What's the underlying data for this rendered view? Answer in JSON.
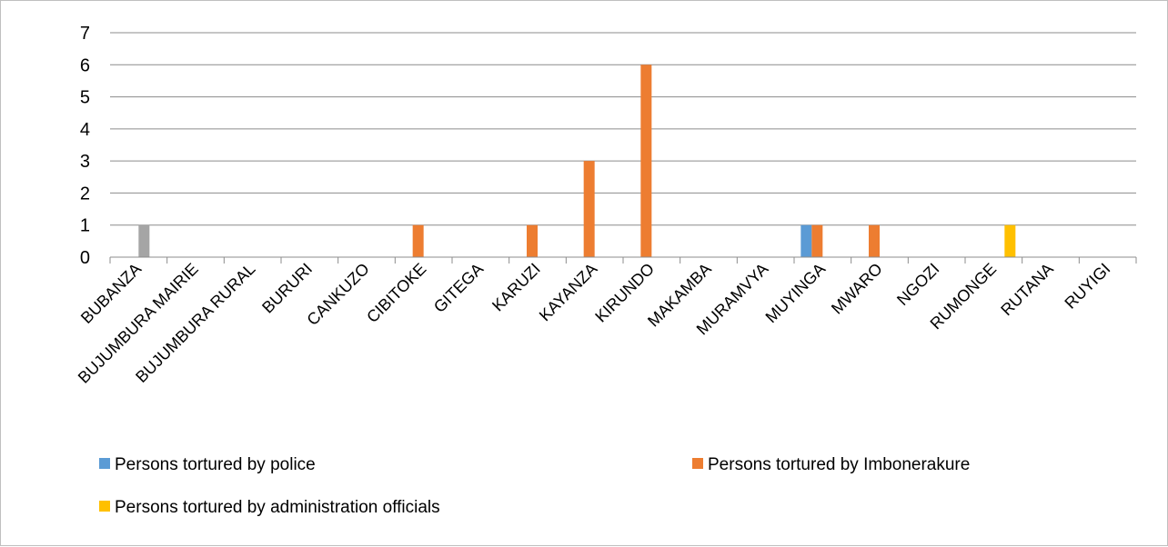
{
  "chart_data": {
    "type": "bar",
    "categories": [
      "BUBANZA",
      "BUJUMBURA MAIRIE",
      "BUJUMBURA RURAL",
      "BURURI",
      "CANKUZO",
      "CIBITOKE",
      "GITEGA",
      "KARUZI",
      "KAYANZA",
      "KIRUNDO",
      "MAKAMBA",
      "MURAMVYA",
      "MUYINGA",
      "MWARO",
      "NGOZI",
      "RUMONGE",
      "RUTANA",
      "RUYIGI"
    ],
    "series": [
      {
        "name": "Persons  tortured by police",
        "color": "#5b9bd5",
        "values": [
          0,
          0,
          0,
          0,
          0,
          0,
          0,
          0,
          0,
          0,
          0,
          0,
          1,
          0,
          0,
          0,
          0,
          0
        ],
        "in_legend": true
      },
      {
        "name": "Persons tortured by Imbonerakure",
        "color": "#ed7d31",
        "values": [
          0,
          0,
          0,
          0,
          0,
          1,
          0,
          1,
          3,
          6,
          0,
          0,
          1,
          1,
          0,
          0,
          0,
          0
        ],
        "in_legend": true
      },
      {
        "name": "",
        "color": "#a5a5a5",
        "values": [
          1,
          0,
          0,
          0,
          0,
          0,
          0,
          0,
          0,
          0,
          0,
          0,
          0,
          0,
          0,
          0,
          0,
          0
        ],
        "in_legend": false
      },
      {
        "name": "Persons tortured by administration officials",
        "color": "#ffc000",
        "values": [
          0,
          0,
          0,
          0,
          0,
          0,
          0,
          0,
          0,
          0,
          0,
          0,
          0,
          0,
          0,
          1,
          0,
          0
        ],
        "in_legend": true
      }
    ],
    "yticks": [
      0,
      1,
      2,
      3,
      4,
      5,
      6,
      7
    ],
    "ylim": [
      0,
      7
    ],
    "grid": true,
    "legend_position": "bottom",
    "title": "",
    "xlabel": "",
    "ylabel": ""
  }
}
